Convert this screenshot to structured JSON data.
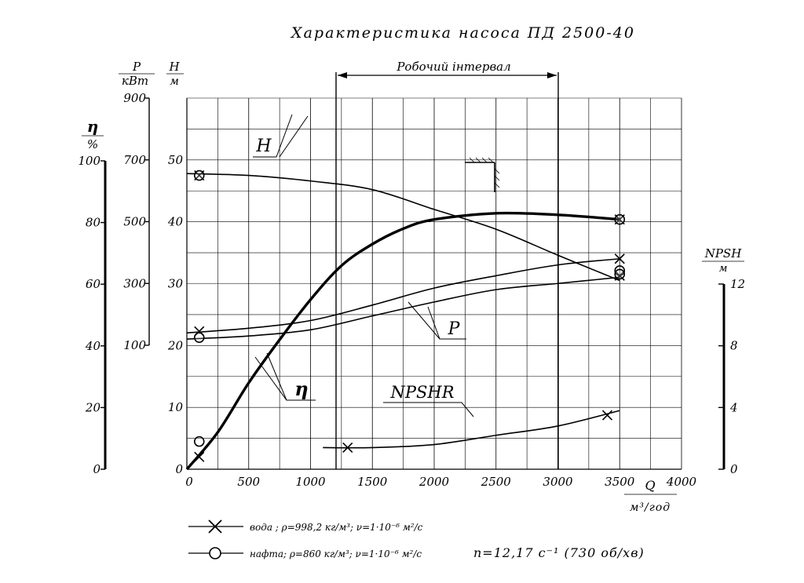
{
  "title": "Характеристика насоса ПД 2500-40",
  "working_interval_label": "Робочий інтервал",
  "axes": {
    "eta_label": "η",
    "eta_unit": "%",
    "p_label": "P",
    "p_unit": "кВт",
    "h_label": "H",
    "h_unit": "м",
    "npsh_label": "NPSH",
    "npsh_unit": "м",
    "q_label": "Q",
    "q_unit": "м³/год"
  },
  "ticks": {
    "eta": [
      "100",
      "80",
      "60",
      "40",
      "20",
      "0"
    ],
    "p": [
      "900",
      "700",
      "500",
      "300",
      "100"
    ],
    "h": [
      "50",
      "40",
      "30",
      "20",
      "10",
      "0"
    ],
    "npsh": [
      "12",
      "8",
      "4",
      "0"
    ],
    "q": [
      "0",
      "500",
      "1000",
      "1500",
      "2000",
      "2500",
      "3000",
      "3500",
      "4000"
    ]
  },
  "curve_labels": {
    "H": "H",
    "P": "P",
    "eta": "η",
    "NPSHR": "NPSHR"
  },
  "legend": {
    "water": "вода ; ρ=998,2 кг/м³; ν=1·10⁻⁶ м²/с",
    "oil": "нафта; ρ=860 кг/м³; ν=1·10⁻⁶ м²/с",
    "speed": "n=12,17  с⁻¹ (730  об/хв)"
  },
  "chart_data": {
    "type": "line",
    "x_axis": {
      "label": "Q, м³/год",
      "range": [
        0,
        4000
      ],
      "ticks": [
        0,
        500,
        1000,
        1500,
        2000,
        2500,
        3000,
        3500,
        4000
      ]
    },
    "working_interval": [
      1200,
      3000
    ],
    "grid": true,
    "series": [
      {
        "name": "H",
        "axis": "H, м",
        "range": [
          0,
          50
        ],
        "points": [
          [
            0,
            47.8
          ],
          [
            500,
            47.5
          ],
          [
            1000,
            46.6
          ],
          [
            1500,
            45.2
          ],
          [
            2000,
            42.0
          ],
          [
            2500,
            38.8
          ],
          [
            3000,
            34.6
          ],
          [
            3500,
            30.5
          ]
        ],
        "markers_water": [
          [
            100,
            47.5
          ],
          [
            3500,
            31.3
          ]
        ],
        "markers_oil": [
          [
            100,
            47.5
          ],
          [
            3500,
            32.1
          ]
        ]
      },
      {
        "name": "η",
        "axis": "η, %",
        "range": [
          0,
          100
        ],
        "points": [
          [
            0,
            0
          ],
          [
            250,
            12
          ],
          [
            500,
            28
          ],
          [
            750,
            42
          ],
          [
            1000,
            55
          ],
          [
            1250,
            66
          ],
          [
            1500,
            73
          ],
          [
            1750,
            78
          ],
          [
            2000,
            81
          ],
          [
            2500,
            83
          ],
          [
            3000,
            82.5
          ],
          [
            3500,
            81
          ]
        ],
        "markers_water": [
          [
            100,
            4
          ],
          [
            3500,
            81
          ]
        ],
        "markers_oil": [
          [
            100,
            9
          ],
          [
            3500,
            81
          ]
        ]
      },
      {
        "name": "P (вода)",
        "axis": "P, кВт",
        "range": [
          0,
          900
        ],
        "points": [
          [
            0,
            140
          ],
          [
            500,
            155
          ],
          [
            1000,
            180
          ],
          [
            1500,
            230
          ],
          [
            2000,
            285
          ],
          [
            2500,
            325
          ],
          [
            3000,
            360
          ],
          [
            3500,
            380
          ]
        ],
        "markers": [
          [
            100,
            145
          ],
          [
            3500,
            380
          ]
        ]
      },
      {
        "name": "P (нафта)",
        "axis": "P, кВт",
        "range": [
          0,
          900
        ],
        "points": [
          [
            0,
            120
          ],
          [
            500,
            130
          ],
          [
            1000,
            150
          ],
          [
            1500,
            195
          ],
          [
            2000,
            240
          ],
          [
            2500,
            280
          ],
          [
            3000,
            300
          ],
          [
            3500,
            320
          ]
        ],
        "markers": [
          [
            100,
            125
          ],
          [
            3500,
            330
          ]
        ]
      },
      {
        "name": "NPSHR",
        "axis": "NPSH, м",
        "range": [
          0,
          12
        ],
        "points": [
          [
            1100,
            1.4
          ],
          [
            1500,
            1.4
          ],
          [
            2000,
            1.6
          ],
          [
            2500,
            2.2
          ],
          [
            3000,
            2.8
          ],
          [
            3500,
            3.8
          ]
        ],
        "markers": [
          [
            1300,
            1.4
          ],
          [
            3400,
            3.5
          ]
        ]
      }
    ]
  }
}
